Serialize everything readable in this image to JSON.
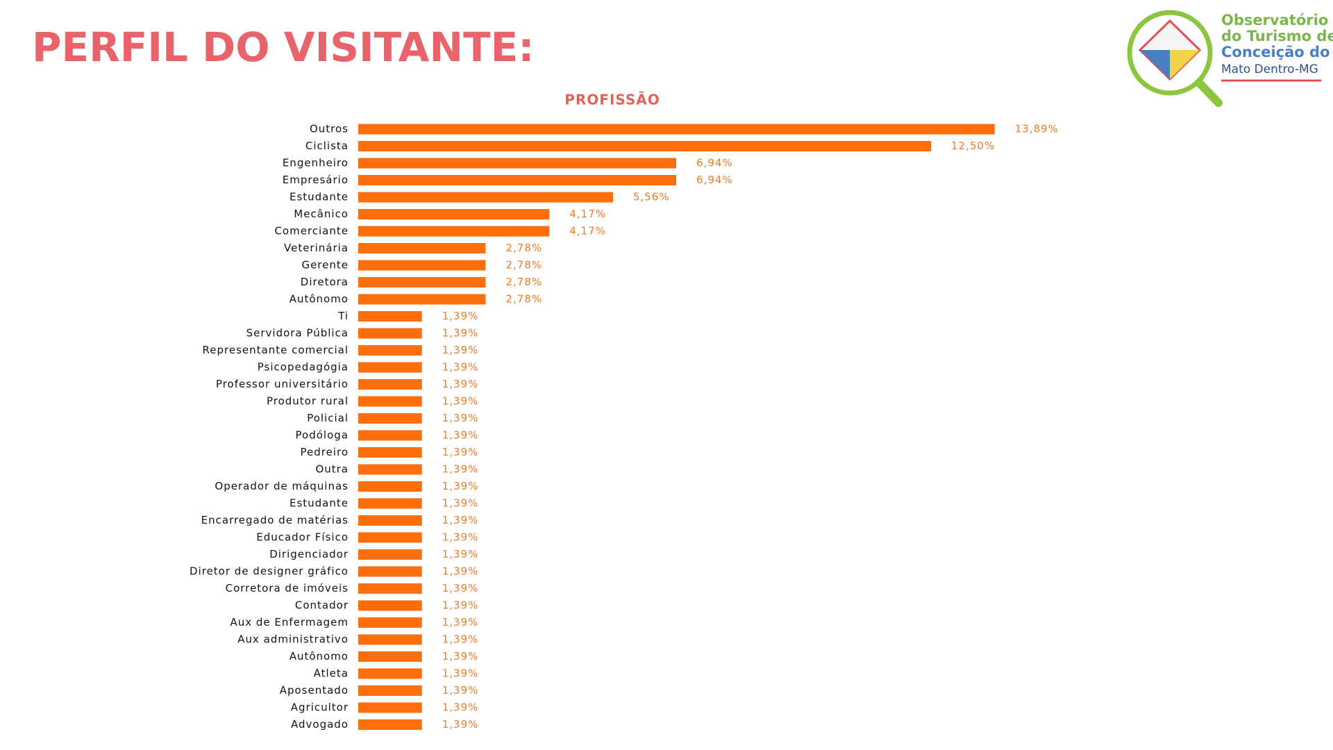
{
  "header": {
    "title": "PERFIL DO VISITANTE:"
  },
  "logo": {
    "lines": [
      "Observatório",
      "do Turismo de",
      "Conceição do",
      "Mato Dentro-MG"
    ]
  },
  "chart_data": {
    "type": "bar",
    "orientation": "horizontal",
    "title": "PROFISSÃO",
    "color": "#ff6e0c",
    "categories": [
      "Outros",
      "Ciclista",
      "Engenheiro",
      "Empresário",
      "Estudante",
      "Mecânico",
      "Comerciante",
      "Veterinária",
      "Gerente",
      "Diretora",
      "Autônomo",
      "Ti",
      "Servidora Pública",
      "Representante comercial",
      "Psicopedagógia",
      "Professor universitário",
      "Produtor rural",
      "Policial",
      "Podóloga",
      "Pedreiro",
      "Outra",
      "Operador de máquinas",
      "Estudante",
      "Encarregado de matérias",
      "Educador Físico",
      "Dirigenciador",
      "Diretor de designer gráfico",
      "Corretora de imóveis",
      "Contador",
      "Aux de Enfermagem",
      "Aux administrativo",
      "Autônomo",
      "Atleta",
      "Aposentado",
      "Agricultor",
      "Advogado"
    ],
    "values": [
      13.89,
      12.5,
      6.94,
      6.94,
      5.56,
      4.17,
      4.17,
      2.78,
      2.78,
      2.78,
      2.78,
      1.39,
      1.39,
      1.39,
      1.39,
      1.39,
      1.39,
      1.39,
      1.39,
      1.39,
      1.39,
      1.39,
      1.39,
      1.39,
      1.39,
      1.39,
      1.39,
      1.39,
      1.39,
      1.39,
      1.39,
      1.39,
      1.39,
      1.39,
      1.39,
      1.39
    ],
    "value_labels": [
      "13,89%",
      "12,50%",
      "6,94%",
      "6,94%",
      "5,56%",
      "4,17%",
      "4,17%",
      "2,78%",
      "2,78%",
      "2,78%",
      "2,78%",
      "1,39%",
      "1,39%",
      "1,39%",
      "1,39%",
      "1,39%",
      "1,39%",
      "1,39%",
      "1,39%",
      "1,39%",
      "1,39%",
      "1,39%",
      "1,39%",
      "1,39%",
      "1,39%",
      "1,39%",
      "1,39%",
      "1,39%",
      "1,39%",
      "1,39%",
      "1,39%",
      "1,39%",
      "1,39%",
      "1,39%",
      "1,39%",
      "1,39%"
    ]
  }
}
